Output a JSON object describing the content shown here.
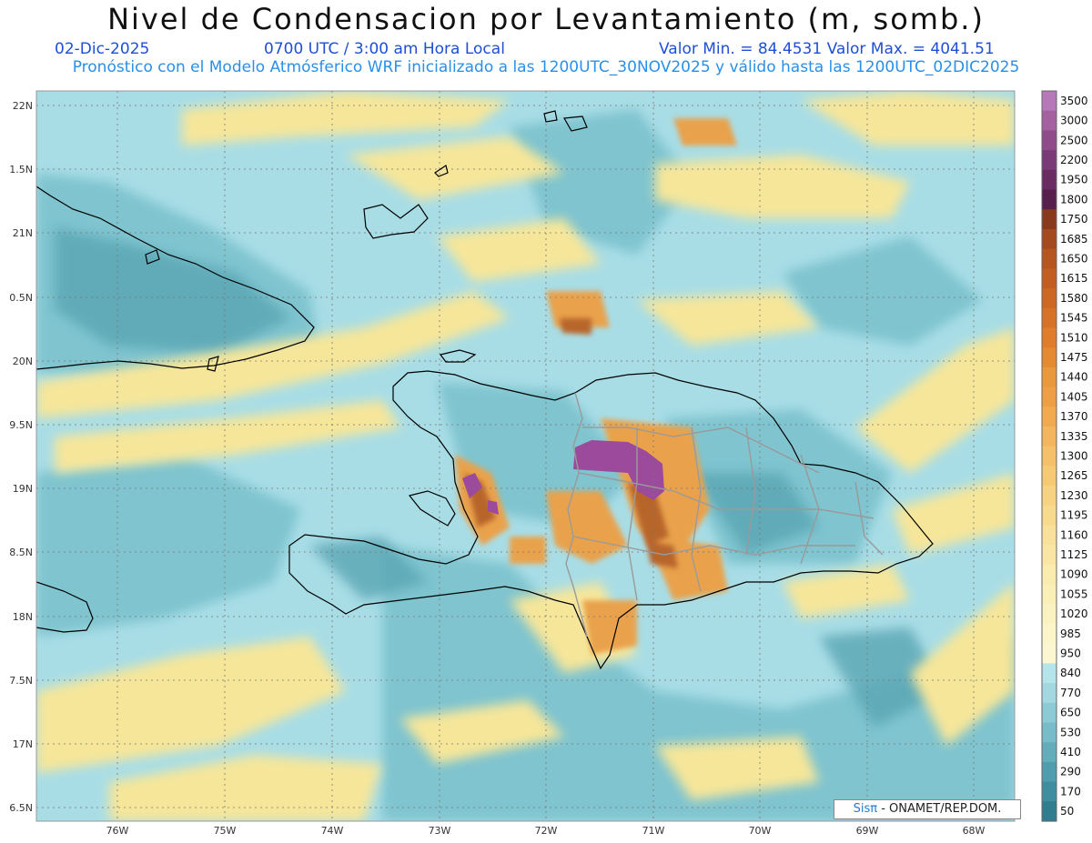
{
  "header": {
    "title": "Nivel de Condensacion por Levantamiento (m, somb.)",
    "date": "02-Dic-2025",
    "time": "0700 UTC / 3:00 am Hora Local",
    "value_range": "Valor Min. = 84.4531   Valor Max. = 4041.51",
    "model_line": "Pronóstico con el Modelo Atmósferico WRF inicializado a las 1200UTC_30NOV2025 y válido hasta las  1200UTC_02DIC2025"
  },
  "map": {
    "lat_labels": [
      "22N",
      "1.5N",
      "21N",
      "0.5N",
      "20N",
      "9.5N",
      "19N",
      "8.5N",
      "18N",
      "7.5N",
      "17N",
      "6.5N"
    ],
    "lon_labels": [
      "76W",
      "75W",
      "74W",
      "73W",
      "72W",
      "71W",
      "70W",
      "69W",
      "68W"
    ],
    "colors": {
      "sea_base": "#a8dde6",
      "teal": "#7fc4cf",
      "deep_teal": "#5aa6b4",
      "yellow": "#f6e69a",
      "orange": "#e9a24c",
      "brown": "#b8652a",
      "purple": "#9b4a9c",
      "coast": "#000000",
      "borders": "#9a9a9a"
    }
  },
  "colorbar": {
    "labels": [
      "3500",
      "3000",
      "2500",
      "2200",
      "1950",
      "1800",
      "1750",
      "1685",
      "1650",
      "1615",
      "1580",
      "1545",
      "1510",
      "1475",
      "1440",
      "1405",
      "1370",
      "1335",
      "1300",
      "1265",
      "1230",
      "1195",
      "1160",
      "1125",
      "1090",
      "1055",
      "1020",
      "985",
      "950",
      "840",
      "770",
      "650",
      "530",
      "410",
      "290",
      "170",
      "50"
    ],
    "colors": [
      "#b778b9",
      "#a5609f",
      "#8f4b8a",
      "#7a3a75",
      "#692b61",
      "#571f4c",
      "#8a3a1c",
      "#a44a1f",
      "#b55520",
      "#c25e22",
      "#cc6724",
      "#d67227",
      "#df7d2c",
      "#e48a33",
      "#e9983c",
      "#ee9f45",
      "#f1aa50",
      "#f3b55e",
      "#f5c06a",
      "#f6c975",
      "#f7d282",
      "#f8da8f",
      "#f9e19b",
      "#f9e6a5",
      "#faebae",
      "#fbefb8",
      "#fbf2c1",
      "#fcf5c9",
      "#fcf7d0",
      "#b5e4ea",
      "#a3d8e1",
      "#8ccbd5",
      "#77bcc8",
      "#63adbb",
      "#4f9dad",
      "#3f8e9f",
      "#2f7d8f"
    ]
  },
  "credit": {
    "brand": "Sisπ",
    "org": " - ONAMET/REP.DOM."
  }
}
